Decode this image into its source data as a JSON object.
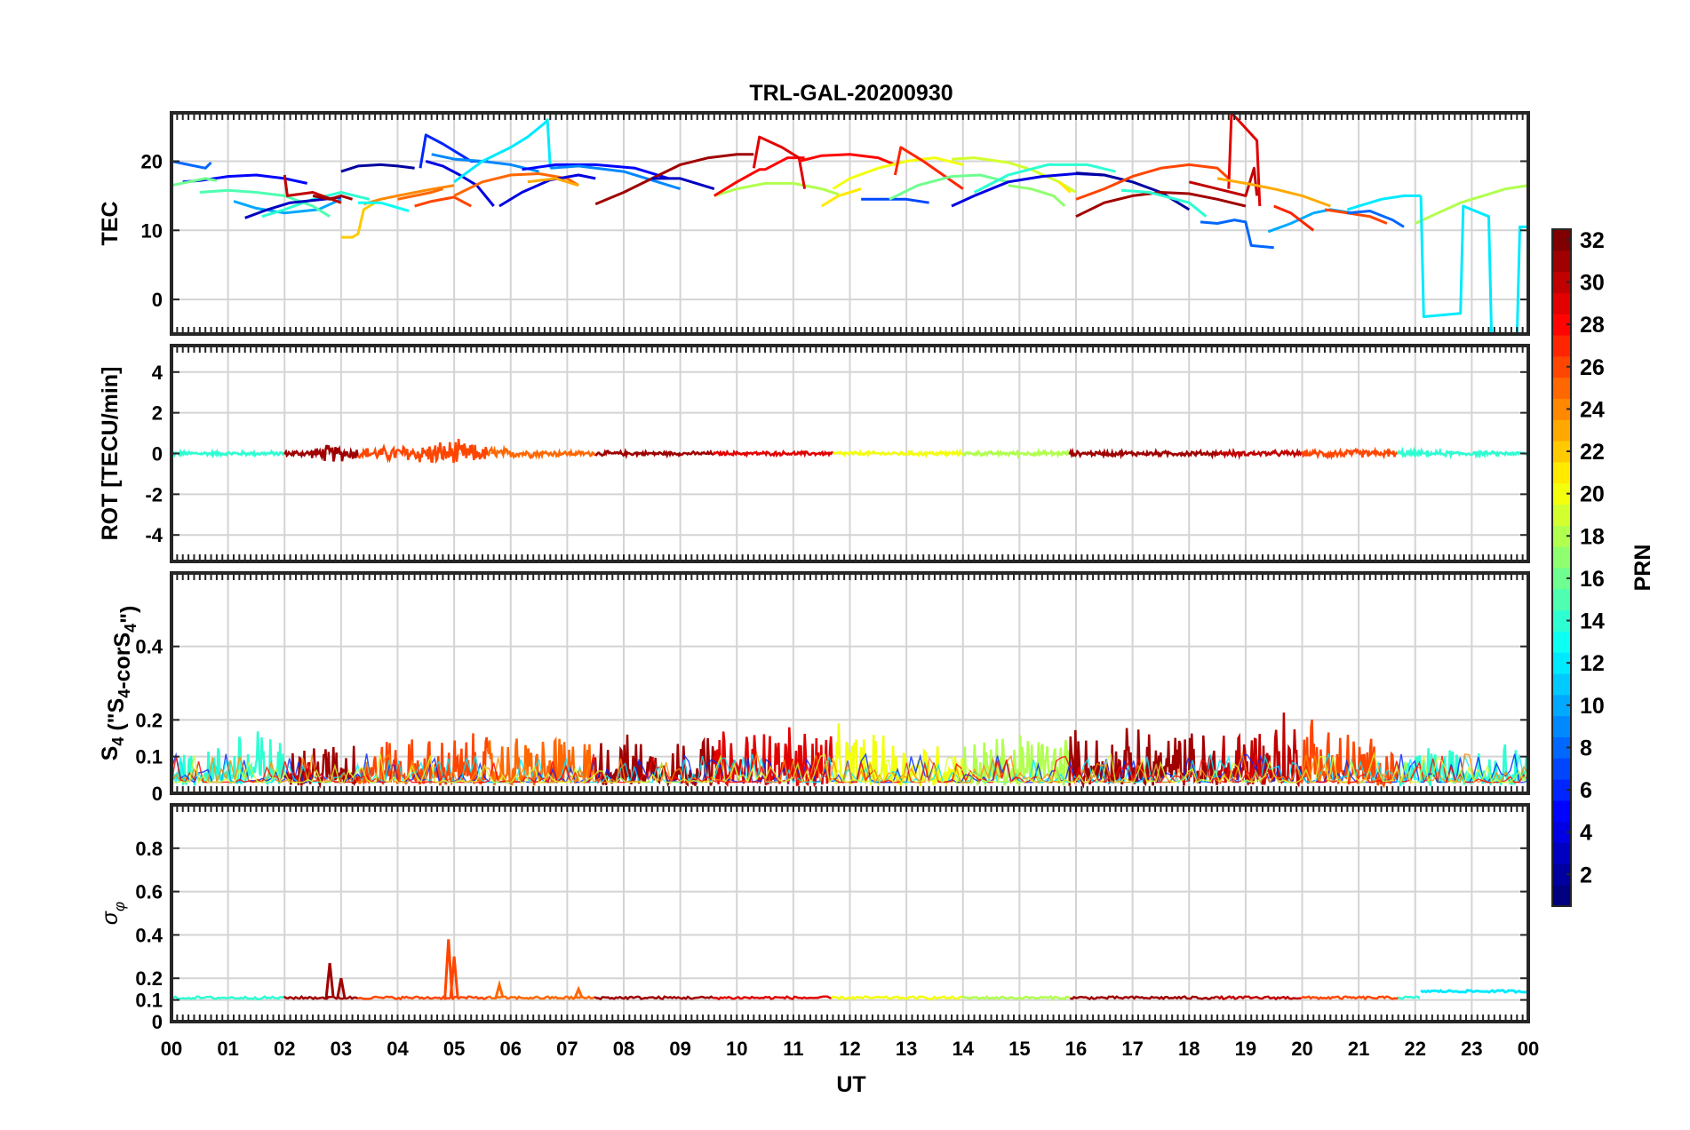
{
  "title": "TRL-GAL-20200930",
  "colors": {
    "axis": "#262626",
    "grid": "#d4d4d4",
    "background": "#ffffff"
  },
  "chart_data": [
    {
      "type": "line",
      "id": "tec",
      "ylabel": "TEC",
      "ylim": [
        -5,
        27
      ],
      "yticks": [
        0,
        10,
        20
      ],
      "series": [
        {
          "prn": 2,
          "x": [
            3.0,
            3.3,
            3.7,
            4.0,
            4.3
          ],
          "y": [
            18.5,
            19.3,
            19.5,
            19.3,
            19.0
          ]
        },
        {
          "prn": 8,
          "x": [
            0.0,
            0.3,
            0.6,
            0.7
          ],
          "y": [
            20.0,
            19.5,
            19.0,
            19.8
          ]
        },
        {
          "prn": 5,
          "x": [
            0.2,
            0.5,
            1.0,
            1.5,
            2.0,
            2.4
          ],
          "y": [
            17.0,
            17.2,
            17.8,
            18.0,
            17.5,
            16.8
          ]
        },
        {
          "prn": 16,
          "x": [
            0.0,
            0.3,
            0.6,
            0.8
          ],
          "y": [
            16.5,
            17.0,
            17.5,
            17.2
          ]
        },
        {
          "prn": 10,
          "x": [
            1.1,
            1.5,
            2.0,
            2.6,
            3.0
          ],
          "y": [
            14.2,
            13.2,
            12.5,
            13.0,
            14.5
          ]
        },
        {
          "prn": 14,
          "x": [
            1.6,
            2.0,
            2.5,
            3.0,
            3.5
          ],
          "y": [
            12.0,
            13.0,
            14.5,
            15.5,
            14.5
          ]
        },
        {
          "prn": 15,
          "x": [
            0.5,
            1.0,
            1.5,
            2.0,
            2.5,
            2.8
          ],
          "y": [
            15.5,
            15.8,
            15.5,
            15.0,
            13.5,
            12.0
          ]
        },
        {
          "prn": 3,
          "x": [
            1.3,
            1.7,
            2.1,
            2.7,
            3.0
          ],
          "y": [
            11.8,
            13.0,
            14.0,
            14.5,
            14.8
          ]
        },
        {
          "prn": 30,
          "x": [
            2.0,
            2.05,
            2.5,
            3.0
          ],
          "y": [
            18.0,
            15.0,
            15.5,
            14.0
          ]
        },
        {
          "prn": 31,
          "x": [
            2.5,
            2.8,
            3.0,
            3.2
          ],
          "y": [
            15.0,
            14.5,
            15.0,
            14.5
          ]
        },
        {
          "prn": 22,
          "x": [
            3.0,
            3.2,
            3.3,
            3.4,
            3.6
          ],
          "y": [
            9.0,
            9.0,
            9.5,
            13.0,
            14.0
          ]
        },
        {
          "prn": 24,
          "x": [
            3.4,
            3.7,
            4.0,
            4.5,
            5.0
          ],
          "y": [
            13.8,
            14.5,
            15.0,
            15.8,
            16.5
          ]
        },
        {
          "prn": 25,
          "x": [
            4.0,
            4.3,
            4.6,
            4.8
          ],
          "y": [
            14.5,
            15.0,
            15.5,
            16.0
          ]
        },
        {
          "prn": 26,
          "x": [
            4.3,
            4.6,
            5.0,
            5.3
          ],
          "y": [
            13.5,
            14.2,
            14.8,
            13.5
          ]
        },
        {
          "prn": 13,
          "x": [
            3.3,
            3.7,
            4.2
          ],
          "y": [
            14.0,
            14.0,
            12.8
          ]
        },
        {
          "prn": 6,
          "x": [
            4.4,
            4.5,
            4.8,
            5.1,
            5.3,
            5.6
          ],
          "y": [
            19.0,
            23.8,
            22.5,
            21.0,
            20.0,
            20.0
          ]
        },
        {
          "prn": 4,
          "x": [
            4.5,
            4.8,
            5.1,
            5.4,
            5.7
          ],
          "y": [
            20.0,
            19.3,
            18.0,
            16.5,
            13.5
          ]
        },
        {
          "prn": 9,
          "x": [
            4.6,
            5.0,
            5.5,
            6.0,
            6.5
          ],
          "y": [
            21.0,
            20.3,
            20.0,
            19.5,
            18.5
          ]
        },
        {
          "prn": 12,
          "x": [
            5.0,
            5.5,
            6.0,
            6.3,
            6.6,
            6.65,
            6.7
          ],
          "y": [
            17.0,
            20.0,
            22.0,
            23.5,
            25.5,
            26.0,
            19.0
          ]
        },
        {
          "prn": 25,
          "x": [
            5.0,
            5.5,
            6.0,
            6.5,
            7.0,
            7.2
          ],
          "y": [
            15.0,
            17.0,
            18.0,
            18.2,
            17.5,
            16.5
          ]
        },
        {
          "prn": 4,
          "x": [
            5.8,
            6.2,
            6.7,
            7.2,
            7.5
          ],
          "y": [
            13.5,
            15.5,
            17.3,
            18.0,
            17.5
          ]
        },
        {
          "prn": 23,
          "x": [
            6.3,
            6.8,
            7.2
          ],
          "y": [
            17.0,
            17.5,
            16.5
          ]
        },
        {
          "prn": 5,
          "x": [
            6.2,
            6.8,
            7.5,
            8.2,
            8.8
          ],
          "y": [
            18.8,
            19.5,
            19.5,
            19.0,
            17.5
          ]
        },
        {
          "prn": 9,
          "x": [
            6.7,
            7.2,
            8.0,
            8.6,
            9.0
          ],
          "y": [
            19.0,
            19.3,
            18.5,
            17.0,
            16.0
          ]
        },
        {
          "prn": 31,
          "x": [
            7.5,
            8.0,
            8.5,
            9.0,
            9.5,
            10.0,
            10.3
          ],
          "y": [
            13.8,
            15.5,
            17.5,
            19.5,
            20.5,
            21.0,
            21.0
          ]
        },
        {
          "prn": 3,
          "x": [
            8.5,
            9.0,
            9.6
          ],
          "y": [
            17.5,
            17.5,
            16.0
          ]
        },
        {
          "prn": 18,
          "x": [
            9.6,
            10.0,
            10.5,
            11.0,
            11.5,
            11.8
          ],
          "y": [
            15.0,
            16.0,
            16.8,
            16.8,
            16.0,
            15.2
          ]
        },
        {
          "prn": 28,
          "x": [
            9.6,
            10.0,
            10.4,
            10.5,
            10.9,
            11.2
          ],
          "y": [
            15.0,
            17.0,
            18.8,
            18.8,
            20.5,
            20.5
          ]
        },
        {
          "prn": 29,
          "x": [
            10.3,
            10.4,
            10.8,
            11.1,
            11.2
          ],
          "y": [
            19.0,
            23.5,
            22.0,
            20.5,
            16.0
          ]
        },
        {
          "prn": 28,
          "x": [
            11.1,
            11.5,
            12.0,
            12.5,
            12.8
          ],
          "y": [
            20.0,
            20.8,
            21.0,
            20.5,
            19.5
          ]
        },
        {
          "prn": 20,
          "x": [
            11.7,
            12.0,
            12.5,
            13.0,
            13.5,
            14.0
          ],
          "y": [
            16.0,
            17.5,
            19.0,
            20.0,
            20.5,
            19.5
          ]
        },
        {
          "prn": 21,
          "x": [
            11.5,
            11.8,
            12.2
          ],
          "y": [
            13.5,
            15.0,
            16.0
          ]
        },
        {
          "prn": 27,
          "x": [
            12.8,
            12.9,
            13.3,
            14.0
          ],
          "y": [
            18.0,
            22.0,
            20.0,
            16.0
          ]
        },
        {
          "prn": 7,
          "x": [
            12.2,
            12.6,
            13.0,
            13.4
          ],
          "y": [
            14.5,
            14.5,
            14.5,
            14.0
          ]
        },
        {
          "prn": 16,
          "x": [
            12.7,
            13.2,
            13.8,
            14.3,
            14.8
          ],
          "y": [
            14.5,
            16.5,
            17.8,
            18.0,
            17.0
          ]
        },
        {
          "prn": 19,
          "x": [
            13.8,
            14.2,
            14.8,
            15.2,
            15.7,
            16.0
          ],
          "y": [
            20.3,
            20.5,
            19.8,
            18.8,
            17.0,
            15.5
          ]
        },
        {
          "prn": 4,
          "x": [
            13.8,
            14.2,
            14.8,
            15.4,
            16.0,
            16.5
          ],
          "y": [
            13.5,
            15.0,
            17.0,
            17.8,
            18.2,
            18.0
          ]
        },
        {
          "prn": 14,
          "x": [
            14.2,
            14.8,
            15.5,
            16.2,
            16.7
          ],
          "y": [
            15.5,
            18.0,
            19.5,
            19.5,
            18.5
          ]
        },
        {
          "prn": 17,
          "x": [
            14.8,
            15.2,
            15.6,
            15.8
          ],
          "y": [
            16.5,
            16.0,
            15.0,
            13.5
          ]
        },
        {
          "prn": 21,
          "x": [
            15.7,
            15.9
          ],
          "y": [
            17.0,
            15.5
          ]
        },
        {
          "prn": 2,
          "x": [
            16.0,
            16.5,
            17.0,
            17.5,
            18.0
          ],
          "y": [
            18.3,
            18.0,
            17.0,
            15.5,
            13.0
          ]
        },
        {
          "prn": 26,
          "x": [
            16.0,
            16.5,
            17.0,
            17.5,
            18.0,
            18.5,
            18.7
          ],
          "y": [
            14.5,
            16.0,
            17.8,
            19.0,
            19.5,
            19.0,
            17.5
          ]
        },
        {
          "prn": 31,
          "x": [
            16.0,
            16.5,
            17.0,
            17.5,
            18.0,
            18.5,
            19.0
          ],
          "y": [
            12.0,
            14.0,
            15.0,
            15.5,
            15.3,
            14.5,
            13.5
          ]
        },
        {
          "prn": 14,
          "x": [
            16.8,
            17.3,
            18.0,
            18.3
          ],
          "y": [
            15.8,
            15.5,
            14.0,
            12.0
          ]
        },
        {
          "prn": 29,
          "x": [
            18.7,
            18.75,
            19.2,
            19.25
          ],
          "y": [
            16.0,
            27.0,
            23.0,
            13.5
          ]
        },
        {
          "prn": 30,
          "x": [
            18.0,
            18.5,
            19.0,
            19.15,
            19.2
          ],
          "y": [
            17.0,
            16.0,
            15.0,
            19.0,
            15.0
          ]
        },
        {
          "prn": 23,
          "x": [
            18.5,
            19.0,
            19.5,
            20.0,
            20.5
          ],
          "y": [
            17.5,
            16.8,
            16.0,
            15.0,
            13.5
          ]
        },
        {
          "prn": 8,
          "x": [
            18.2,
            18.5,
            18.8,
            19.0,
            19.1,
            19.5
          ],
          "y": [
            11.2,
            11.0,
            11.5,
            11.2,
            7.8,
            7.5
          ]
        },
        {
          "prn": 10,
          "x": [
            19.4,
            19.8,
            20.2,
            20.5,
            20.9
          ],
          "y": [
            9.8,
            11.0,
            12.5,
            13.0,
            12.5
          ]
        },
        {
          "prn": 27,
          "x": [
            19.5,
            19.8,
            20.2
          ],
          "y": [
            13.5,
            12.5,
            10.0
          ]
        },
        {
          "prn": 26,
          "x": [
            20.4,
            20.8,
            21.2,
            21.5
          ],
          "y": [
            13.0,
            12.5,
            12.0,
            11.0
          ]
        },
        {
          "prn": 8,
          "x": [
            20.8,
            21.2,
            21.6,
            21.8
          ],
          "y": [
            12.5,
            12.8,
            11.5,
            10.5
          ]
        },
        {
          "prn": 12,
          "x": [
            20.8,
            21.4,
            21.8,
            22.1
          ],
          "y": [
            13.0,
            14.5,
            15.0,
            15.0
          ]
        },
        {
          "prn": 18,
          "x": [
            22.0,
            22.4,
            22.8,
            23.2,
            23.6,
            24.0
          ],
          "y": [
            11.0,
            12.5,
            14.0,
            15.0,
            16.0,
            16.5
          ]
        },
        {
          "prn": 12,
          "x": [
            22.1,
            22.15,
            22.8,
            22.85,
            23.3,
            23.35,
            23.8,
            23.85,
            24.0
          ],
          "y": [
            15.0,
            -2.5,
            -2.0,
            13.5,
            12.0,
            -5.0,
            -5.5,
            10.5,
            10.5
          ]
        }
      ]
    },
    {
      "type": "line",
      "id": "rot",
      "ylabel": "ROT [TECU/min]",
      "ylim": [
        -5.3,
        5.3
      ],
      "yticks": [
        -4,
        -2,
        0,
        2,
        4
      ],
      "activity": {
        "x": [
          0,
          2,
          2.5,
          2.8,
          3.2,
          3.6,
          4.5,
          5.0,
          5.5,
          6.0,
          7.0,
          9.0,
          20.0,
          20.5,
          24.0
        ],
        "amplitude": [
          0.12,
          0.12,
          0.25,
          0.55,
          0.35,
          0.35,
          0.6,
          0.8,
          0.45,
          0.25,
          0.15,
          0.1,
          0.15,
          0.25,
          0.08
        ]
      }
    },
    {
      "type": "line",
      "id": "s4",
      "ylabel": "S4 (\"S4-corS4\")",
      "ylim": [
        0,
        0.6
      ],
      "yticks": [
        0,
        0.1,
        0.2,
        0.4
      ],
      "activity": {
        "x": [
          0,
          1.0,
          1.4,
          2.0,
          5.0,
          9.5,
          10.0,
          11.5,
          13.5,
          16.0,
          18.5,
          20.4,
          20.6,
          21.7,
          24.0
        ],
        "amplitude": [
          0.08,
          0.1,
          0.16,
          0.1,
          0.12,
          0.12,
          0.14,
          0.15,
          0.1,
          0.14,
          0.13,
          0.22,
          0.15,
          0.08,
          0.1
        ]
      }
    },
    {
      "type": "line",
      "id": "sigma",
      "ylabel": "σφ",
      "ylim": [
        0,
        1.0
      ],
      "yticks": [
        0,
        0.1,
        0.2,
        0.4,
        0.6,
        0.8
      ],
      "baseline": 0.11,
      "spikes": [
        {
          "x": 2.8,
          "y": 0.27
        },
        {
          "x": 3.0,
          "y": 0.2
        },
        {
          "x": 4.9,
          "y": 0.38
        },
        {
          "x": 5.0,
          "y": 0.3
        },
        {
          "x": 5.8,
          "y": 0.17
        },
        {
          "x": 7.2,
          "y": 0.15
        }
      ],
      "tail": {
        "x0": 22.1,
        "x1": 24.0,
        "y": 0.14
      }
    }
  ],
  "xaxis": {
    "label": "UT",
    "ticklabels": [
      "00",
      "01",
      "02",
      "03",
      "04",
      "05",
      "06",
      "07",
      "08",
      "09",
      "10",
      "11",
      "12",
      "13",
      "14",
      "15",
      "16",
      "17",
      "18",
      "19",
      "20",
      "21",
      "22",
      "23",
      "00"
    ],
    "range": [
      0,
      24
    ]
  },
  "colorbar": {
    "label": "PRN",
    "range": [
      1,
      32
    ],
    "ticks": [
      2,
      4,
      6,
      8,
      10,
      12,
      14,
      16,
      18,
      20,
      22,
      24,
      26,
      28,
      30,
      32
    ]
  }
}
